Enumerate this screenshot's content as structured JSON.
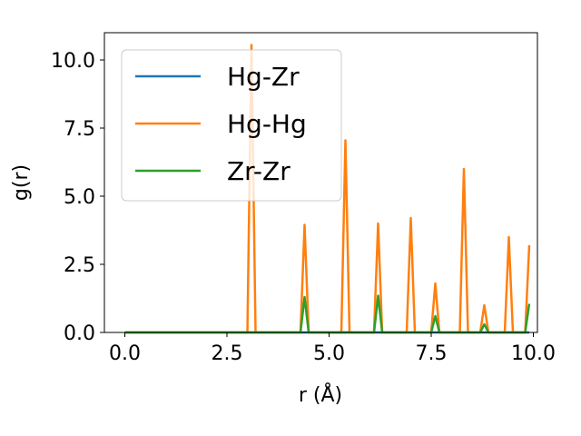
{
  "chart_data": {
    "type": "line",
    "xlabel": "r (Å)",
    "ylabel": "g(r)",
    "xlim": [
      -0.5,
      10.1
    ],
    "ylim": [
      0,
      11.0
    ],
    "xticks": [
      0.0,
      2.5,
      5.0,
      7.5,
      10.0
    ],
    "xtick_labels": [
      "0.0",
      "2.5",
      "5.0",
      "7.5",
      "10.0"
    ],
    "yticks": [
      0.0,
      2.5,
      5.0,
      7.5,
      10.0
    ],
    "ytick_labels": [
      "0.0",
      "2.5",
      "5.0",
      "7.5",
      "10.0"
    ],
    "grid": false,
    "legend_position": "upper-left",
    "series": [
      {
        "name": "Hg-Zr",
        "color": "#1f77b4",
        "x": [
          0.0,
          9.9
        ],
        "y": [
          0.0,
          0.0
        ]
      },
      {
        "name": "Hg-Hg",
        "color": "#ff7f0e",
        "x": [
          0.0,
          3.0,
          3.1,
          3.2,
          4.3,
          4.4,
          4.5,
          5.3,
          5.4,
          5.5,
          6.1,
          6.2,
          6.3,
          6.9,
          7.0,
          7.1,
          7.5,
          7.6,
          7.7,
          8.2,
          8.3,
          8.4,
          8.7,
          8.8,
          8.9,
          9.3,
          9.4,
          9.5,
          9.8,
          9.9
        ],
        "y": [
          0.0,
          0.0,
          10.55,
          0.0,
          0.0,
          3.95,
          0.0,
          0.0,
          7.05,
          0.0,
          0.0,
          4.0,
          0.0,
          0.0,
          4.2,
          0.0,
          0.0,
          1.8,
          0.0,
          0.0,
          6.0,
          0.0,
          0.0,
          1.0,
          0.0,
          0.0,
          3.5,
          0.0,
          0.0,
          3.2
        ]
      },
      {
        "name": "Zr-Zr",
        "color": "#2ca02c",
        "x": [
          0.0,
          4.3,
          4.4,
          4.5,
          6.1,
          6.2,
          6.3,
          7.5,
          7.6,
          7.7,
          8.7,
          8.8,
          8.9,
          9.8,
          9.9
        ],
        "y": [
          0.0,
          0.0,
          1.3,
          0.0,
          0.0,
          1.35,
          0.0,
          0.0,
          0.6,
          0.0,
          0.0,
          0.3,
          0.0,
          0.0,
          1.05
        ]
      }
    ]
  }
}
